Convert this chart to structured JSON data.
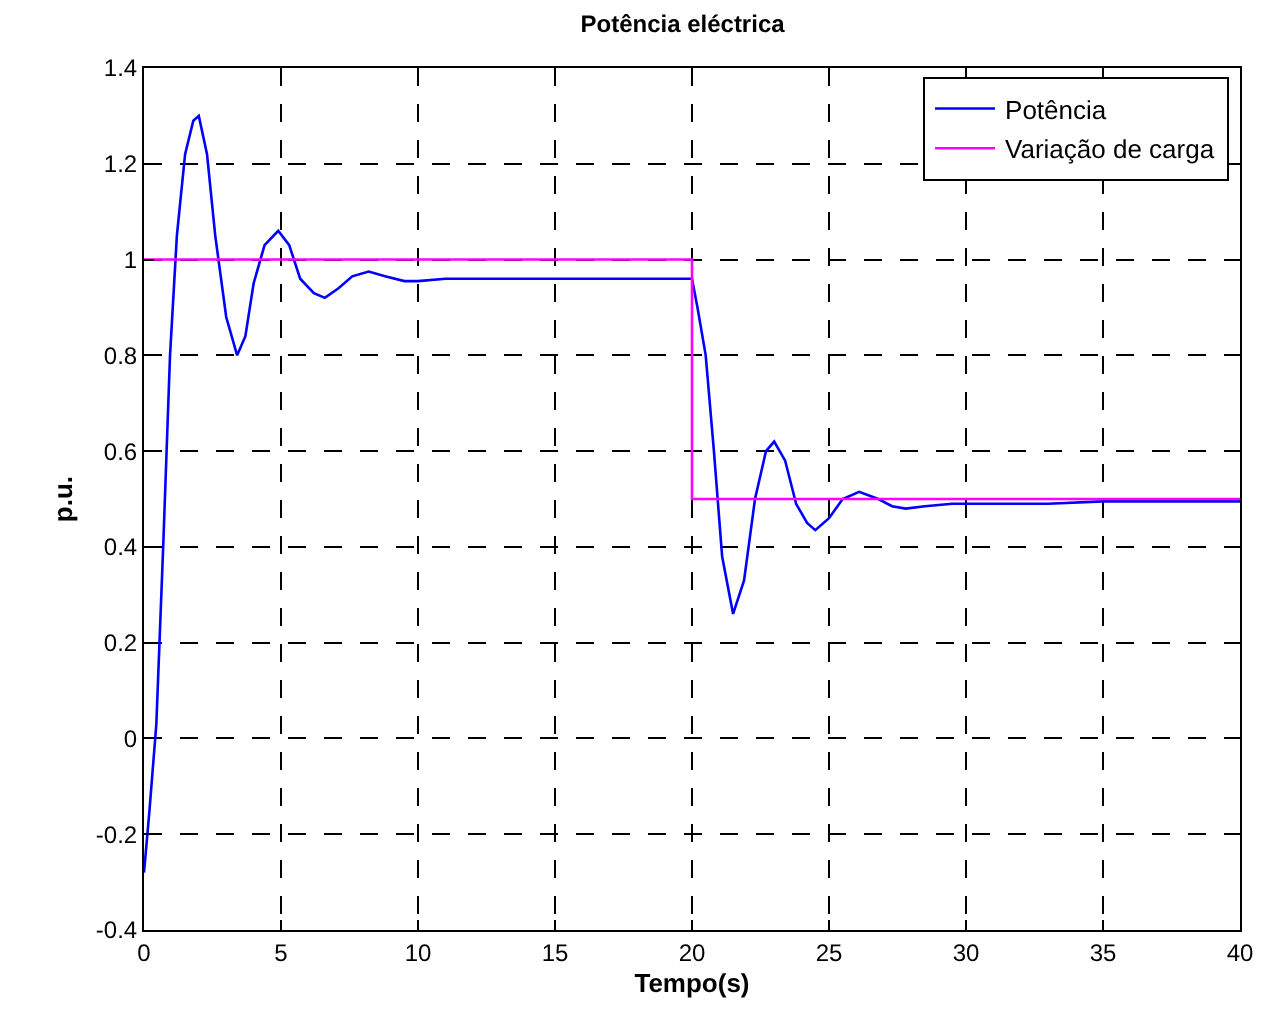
{
  "chart_data": {
    "type": "line",
    "title": "Potência eléctrica",
    "xlabel": "Tempo(s)",
    "ylabel": "p.u.",
    "xlim": [
      0,
      40
    ],
    "ylim": [
      -0.4,
      1.4
    ],
    "xticks": [
      0,
      5,
      10,
      15,
      20,
      25,
      30,
      35,
      40
    ],
    "yticks": [
      -0.4,
      -0.2,
      0,
      0.2,
      0.4,
      0.6,
      0.8,
      1,
      1.2,
      1.4
    ],
    "grid": true,
    "legend": "top right",
    "line_style": "solid",
    "series": [
      {
        "name": "Potência",
        "color": "#0000ff",
        "x": [
          0,
          0.2,
          0.45,
          0.7,
          0.95,
          1.2,
          1.5,
          1.8,
          2.0,
          2.3,
          2.6,
          3.0,
          3.4,
          3.7,
          4.0,
          4.4,
          4.9,
          5.3,
          5.7,
          6.2,
          6.6,
          7.1,
          7.6,
          8.2,
          8.8,
          9.5,
          10,
          11,
          13,
          15,
          17,
          19,
          20,
          20.2,
          20.5,
          20.8,
          21.1,
          21.5,
          21.9,
          22.3,
          22.7,
          23.0,
          23.4,
          23.8,
          24.2,
          24.5,
          25.0,
          25.5,
          26.1,
          26.8,
          27.3,
          27.8,
          28.5,
          29.5,
          31,
          33,
          35,
          37,
          40
        ],
        "values": [
          -0.28,
          -0.15,
          0.03,
          0.4,
          0.8,
          1.05,
          1.22,
          1.29,
          1.3,
          1.22,
          1.05,
          0.88,
          0.8,
          0.84,
          0.95,
          1.03,
          1.06,
          1.03,
          0.96,
          0.93,
          0.92,
          0.94,
          0.965,
          0.975,
          0.965,
          0.955,
          0.955,
          0.96,
          0.96,
          0.96,
          0.96,
          0.96,
          0.96,
          0.9,
          0.8,
          0.6,
          0.38,
          0.26,
          0.33,
          0.5,
          0.6,
          0.62,
          0.58,
          0.49,
          0.45,
          0.435,
          0.46,
          0.5,
          0.515,
          0.5,
          0.485,
          0.48,
          0.485,
          0.49,
          0.49,
          0.49,
          0.495,
          0.495,
          0.495
        ]
      },
      {
        "name": "Variação de carga",
        "color": "#ff00ff",
        "type": "step",
        "x": [
          0,
          20,
          40
        ],
        "values": [
          1,
          0.5,
          0.5
        ]
      }
    ]
  }
}
